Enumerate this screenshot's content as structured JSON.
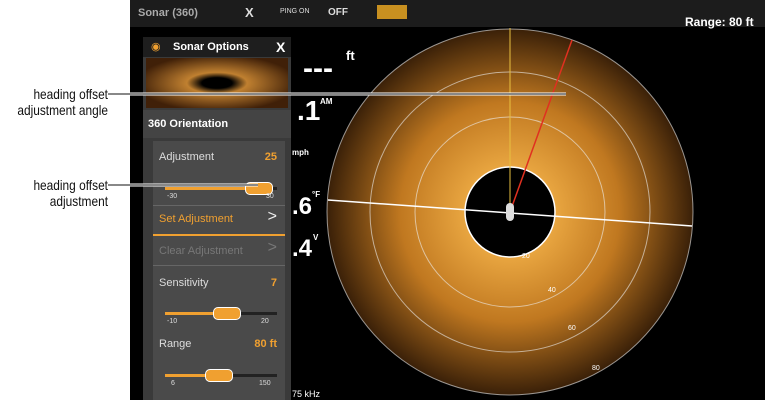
{
  "annotations": [
    {
      "lines": [
        "heading offset",
        "adjustment angle"
      ]
    },
    {
      "lines": [
        "heading offset",
        "adjustment"
      ]
    }
  ],
  "top_bar": {
    "title": "Sonar (360)",
    "close": "X",
    "ping": "PING ON",
    "off": "OFF",
    "range": "Range: 80 ft"
  },
  "readouts": [
    {
      "value": "---",
      "unit": "ft"
    },
    {
      "value": ".1",
      "unit": "AM"
    },
    {
      "value": "",
      "unit": "mph"
    },
    {
      "value": ".6",
      "unit": "°F"
    },
    {
      "value": ".4",
      "unit": "V"
    },
    {
      "value": "75 kHz",
      "unit": ""
    }
  ],
  "rings": [
    "20",
    "40",
    "60",
    "80"
  ],
  "panel": {
    "title": "Sonar Options",
    "close": "X",
    "section": "360 Orientation",
    "adjustment": {
      "label": "Adjustment",
      "value": "25",
      "min": "-30",
      "max": "30"
    },
    "set": "Set Adjustment",
    "clear": "Clear Adjustment",
    "sensitivity": {
      "label": "Sensitivity",
      "value": "7",
      "min": "-10",
      "max": "20"
    },
    "range": {
      "label": "Range",
      "value": "80 ft",
      "min": "6",
      "max": "150"
    }
  }
}
